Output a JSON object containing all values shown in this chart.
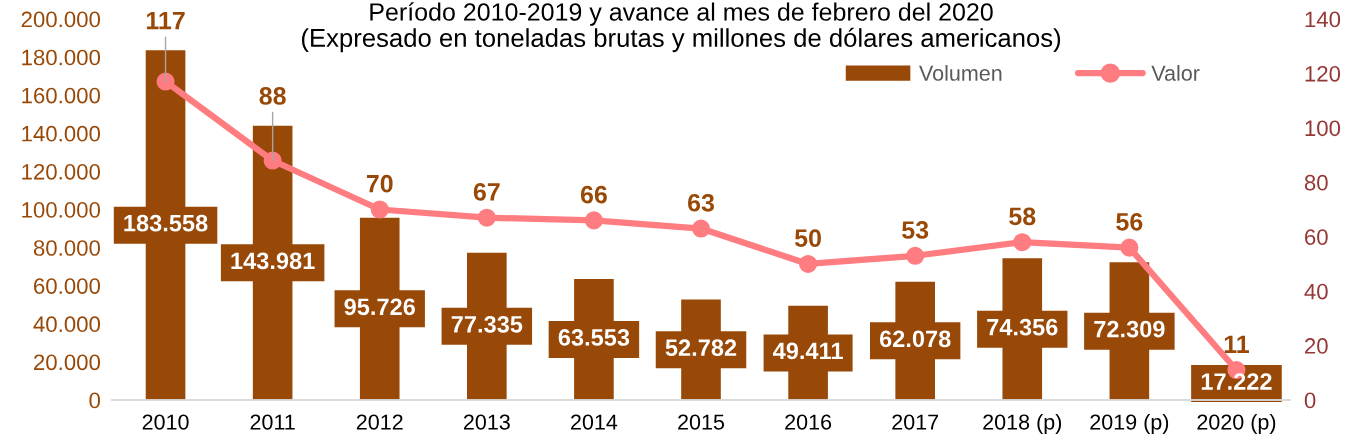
{
  "chart_data": {
    "type": "bar",
    "title": "Período 2010-2019 y avance al mes de febrero del 2020",
    "subtitle": "(Expresado en toneladas brutas y millones de dólares americanos)",
    "categories": [
      "2010",
      "2011",
      "2012",
      "2013",
      "2014",
      "2015",
      "2016",
      "2017",
      "2018 (p)",
      "2019 (p)",
      "2020 (p)"
    ],
    "series": [
      {
        "name": "Volumen",
        "color": "#984807",
        "values": [
          183558,
          143981,
          95726,
          77335,
          63553,
          52782,
          49411,
          62078,
          74356,
          72309,
          17222
        ],
        "value_labels": [
          "183.558",
          "143.981",
          "95.726",
          "77.335",
          "63.553",
          "52.782",
          "49.411",
          "62.078",
          "74.356",
          "72.309",
          "17.222"
        ]
      },
      {
        "name": "Valor",
        "type": "line",
        "axis": "y2",
        "color": "#ff7c80",
        "marker": "circle",
        "line_style": "solid",
        "values": [
          117,
          88,
          70,
          67,
          66,
          63,
          50,
          53,
          58,
          56,
          11
        ],
        "value_labels": [
          "117",
          "88",
          "70",
          "67",
          "66",
          "63",
          "50",
          "53",
          "58",
          "56",
          "11"
        ]
      }
    ],
    "ylim": [
      0,
      200000
    ],
    "yticks": [
      0,
      {
        "value": 20000,
        "label": "20.000"
      },
      {
        "value": 40000,
        "label": "40.000"
      },
      {
        "value": 60000,
        "label": "60.000"
      },
      {
        "value": 80000,
        "label": "80.000"
      },
      {
        "value": 100000,
        "label": "100.000"
      },
      {
        "value": 120000,
        "label": "120.000"
      },
      {
        "value": 140000,
        "label": "140.000"
      },
      {
        "value": 160000,
        "label": "160.000"
      },
      {
        "value": 180000,
        "label": "180.000"
      },
      {
        "value": 200000,
        "label": "200.000"
      }
    ],
    "y2lim": [
      0,
      140
    ],
    "y2ticks": [
      0,
      20,
      40,
      60,
      80,
      100,
      120,
      140
    ],
    "grid": false,
    "legend": "top right"
  }
}
